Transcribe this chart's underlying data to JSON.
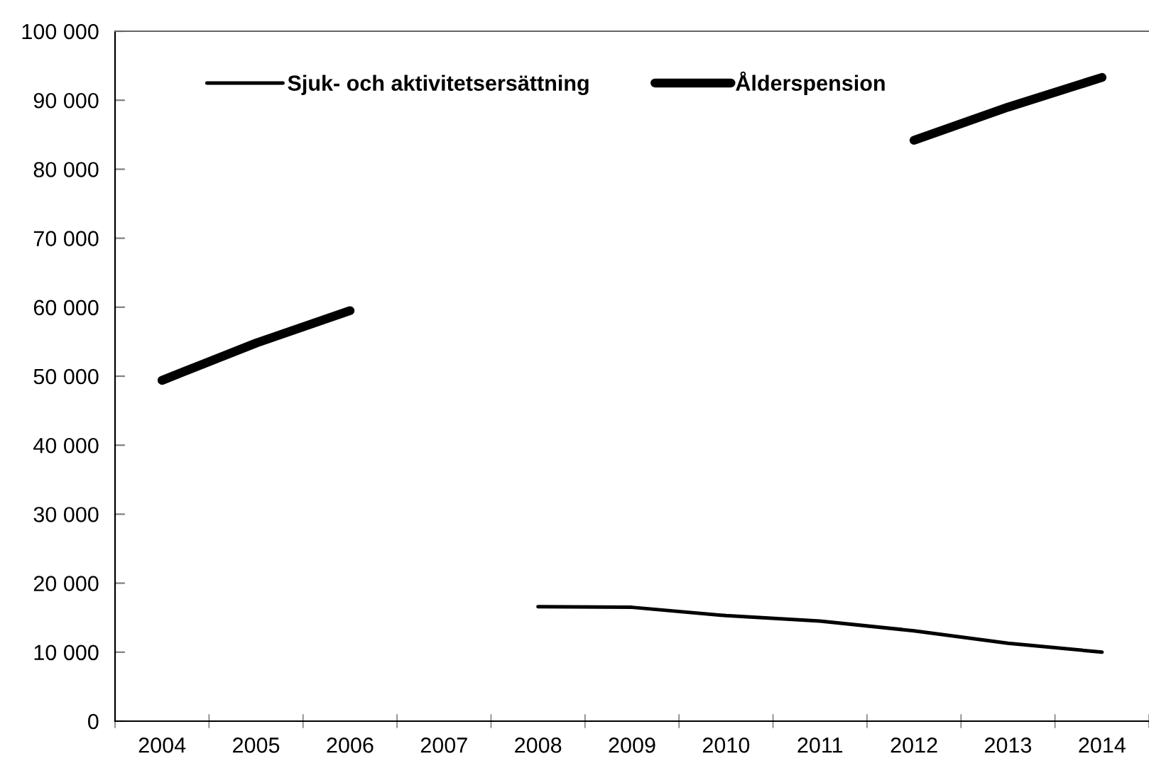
{
  "chart_data": {
    "type": "line",
    "categories": [
      "2004",
      "2005",
      "2006",
      "2007",
      "2008",
      "2009",
      "2010",
      "2011",
      "2012",
      "2013",
      "2014"
    ],
    "series": [
      {
        "name": "Sjuk- och aktivitetsersättning",
        "color": "#000000",
        "values": [
          null,
          null,
          null,
          null,
          16600,
          16500,
          15300,
          14500,
          13100,
          11300,
          10000
        ]
      },
      {
        "name": "Ålderspension",
        "color": "#000000",
        "values": [
          49400,
          54800,
          59500,
          null,
          null,
          null,
          null,
          null,
          84200,
          89000,
          93300
        ]
      }
    ],
    "ylim": [
      0,
      100000
    ],
    "yticks": [
      {
        "value": 0,
        "label": "0"
      },
      {
        "value": 10000,
        "label": "10 000"
      },
      {
        "value": 20000,
        "label": "20 000"
      },
      {
        "value": 30000,
        "label": "30 000"
      },
      {
        "value": 40000,
        "label": "40 000"
      },
      {
        "value": 50000,
        "label": "50 000"
      },
      {
        "value": 60000,
        "label": "60 000"
      },
      {
        "value": 70000,
        "label": "70 000"
      },
      {
        "value": 80000,
        "label": "80 000"
      },
      {
        "value": 90000,
        "label": "90 000"
      },
      {
        "value": 100000,
        "label": "100 000"
      }
    ],
    "grid": false,
    "legend": "top left",
    "marker": "none",
    "line_style": "solid"
  }
}
